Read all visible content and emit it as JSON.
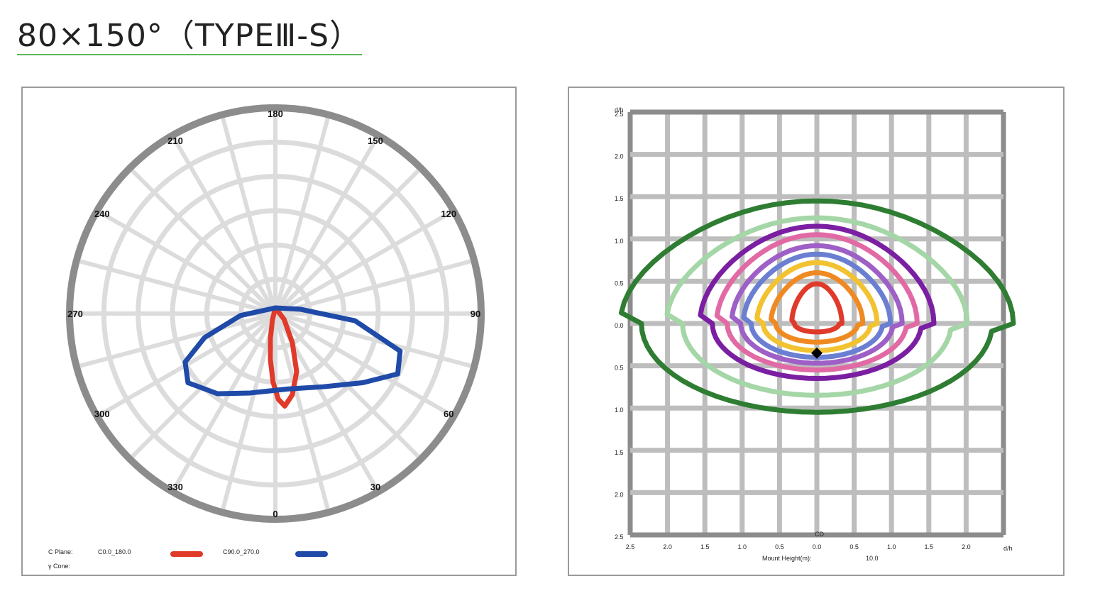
{
  "header": {
    "title": "80×150°（TYPEⅢ-S）"
  },
  "chart_data": [
    {
      "type": "polar",
      "angle_labels": [
        "180",
        "150",
        "120",
        "90",
        "60",
        "30",
        "0",
        "330",
        "300",
        "270",
        "240",
        "210"
      ],
      "legend": {
        "plane_label": "C Plane:",
        "cone_label": "γ Cone:",
        "entries": [
          {
            "name": "C0.0_180.0",
            "color": "#e03a2a"
          },
          {
            "name": "C90.0_270.0",
            "color": "#1f4aa8"
          }
        ]
      },
      "grid": true,
      "series": [
        {
          "name": "C0.0_180.0",
          "color": "#e03a2a",
          "points": [
            [
              0,
              0.0
            ],
            [
              140,
              0.12
            ],
            [
              152,
              0.32
            ],
            [
              160,
              0.55
            ],
            [
              168,
              0.72
            ],
            [
              174,
              0.8
            ],
            [
              178,
              0.74
            ],
            [
              182,
              0.6
            ],
            [
              186,
              0.42
            ],
            [
              190,
              0.25
            ],
            [
              195,
              0.1
            ],
            [
              205,
              0.0
            ]
          ]
        },
        {
          "name": "C90.0_270.0",
          "color": "#1f4aa8",
          "points": [
            [
              0,
              0.0
            ],
            [
              110,
              0.18
            ],
            [
              125,
              0.42
            ],
            [
              135,
              0.62
            ],
            [
              145,
              0.74
            ],
            [
              158,
              0.75
            ],
            [
              170,
              0.7
            ],
            [
              185,
              0.66
            ],
            [
              200,
              0.68
            ],
            [
              215,
              0.74
            ],
            [
              228,
              0.8
            ],
            [
              240,
              0.7
            ],
            [
              255,
              0.4
            ],
            [
              265,
              0.12
            ],
            [
              272,
              0.0
            ]
          ]
        }
      ]
    },
    {
      "type": "contour",
      "y_axis_title": "d/h",
      "x_axis_title": "d/h",
      "y_tick_labels": [
        "2.5",
        "2.0",
        "1.5",
        "1.0",
        "0.5",
        "0.0",
        "0.5",
        "1.0",
        "1.5",
        "2.0",
        "2.5"
      ],
      "x_tick_labels": [
        "2.5",
        "2.0",
        "1.5",
        "1.0",
        "0.5",
        "0.0",
        "0.5",
        "1.0",
        "1.5",
        "2.0"
      ],
      "center_label": "CD",
      "mount_height_label": "Mount Height(m):",
      "mount_height_value": "10.0",
      "grid": true,
      "contours": [
        {
          "color": "#2e7d32",
          "rx": 2.35,
          "ry_top": 1.45,
          "ry_bottom": 1.05,
          "dy": 0.0
        },
        {
          "color": "#a5d6a7",
          "rx": 1.8,
          "ry_top": 1.25,
          "ry_bottom": 0.85,
          "dy": 0.0
        },
        {
          "color": "#7b1fa2",
          "rx": 1.4,
          "ry_top": 1.15,
          "ry_bottom": 0.65,
          "dy": 0.0
        },
        {
          "color": "#e16aa5",
          "rx": 1.2,
          "ry_top": 1.05,
          "ry_bottom": 0.55,
          "dy": 0.0
        },
        {
          "color": "#9e5fc6",
          "rx": 1.02,
          "ry_top": 0.92,
          "ry_bottom": 0.47,
          "dy": 0.0
        },
        {
          "color": "#6a7fd1",
          "rx": 0.88,
          "ry_top": 0.82,
          "ry_bottom": 0.4,
          "dy": 0.0
        },
        {
          "color": "#f2c230",
          "rx": 0.72,
          "ry_top": 0.72,
          "ry_bottom": 0.32,
          "dy": 0.0
        },
        {
          "color": "#ef8a23",
          "rx": 0.55,
          "ry_top": 0.6,
          "ry_bottom": 0.22,
          "dy": 0.0
        },
        {
          "color": "#e03a2a",
          "rx": 0.3,
          "ry_top": 0.47,
          "ry_bottom": 0.1,
          "dy": 0.0
        }
      ],
      "center_marker": {
        "x": 0.0,
        "y": -0.35
      }
    }
  ]
}
